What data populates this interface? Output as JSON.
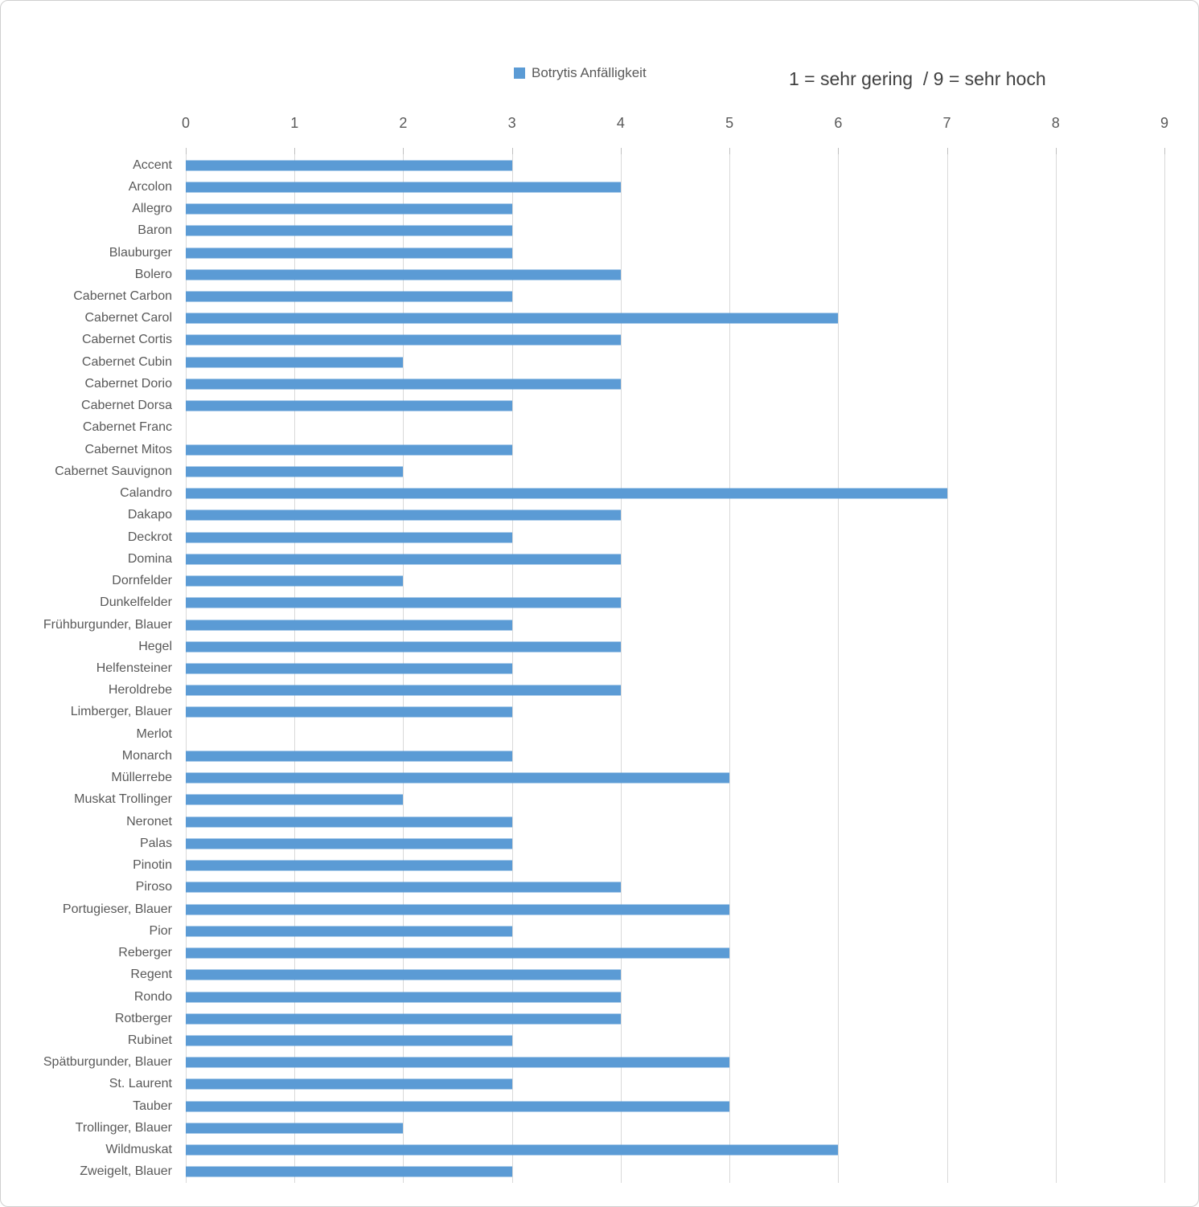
{
  "colors": {
    "bar": "#5B9BD5",
    "gridline": "#D9D9D9",
    "tick_mark": "#BFBFBF",
    "axis_text": "#595959",
    "note_text": "#404040"
  },
  "chart_data": {
    "type": "bar",
    "orientation": "horizontal",
    "series_name": "Botrytis Anfälligkeit",
    "note": "1 = sehr gering  / 9 = sehr hoch",
    "legend_position": "top",
    "grid": true,
    "xlim": [
      0,
      9
    ],
    "x_ticks": [
      0,
      1,
      2,
      3,
      4,
      5,
      6,
      7,
      8,
      9
    ],
    "categories": [
      "Accent",
      "Arcolon",
      "Allegro",
      "Baron",
      "Blauburger",
      "Bolero",
      "Cabernet Carbon",
      "Cabernet Carol",
      "Cabernet Cortis",
      "Cabernet Cubin",
      "Cabernet Dorio",
      "Cabernet Dorsa",
      "Cabernet Franc",
      "Cabernet Mitos",
      "Cabernet Sauvignon",
      "Calandro",
      "Dakapo",
      "Deckrot",
      "Domina",
      "Dornfelder",
      "Dunkelfelder",
      "Frühburgunder, Blauer",
      "Hegel",
      "Helfensteiner",
      "Heroldrebe",
      "Limberger, Blauer",
      "Merlot",
      "Monarch",
      "Müllerrebe",
      "Muskat Trollinger",
      "Neronet",
      "Palas",
      "Pinotin",
      "Piroso",
      "Portugieser, Blauer",
      "Pior",
      "Reberger",
      "Regent",
      "Rondo",
      "Rotberger",
      "Rubinet",
      "Spätburgunder, Blauer",
      "St. Laurent",
      "Tauber",
      "Trollinger, Blauer",
      "Wildmuskat",
      "Zweigelt, Blauer"
    ],
    "values": [
      3,
      4,
      3,
      3,
      3,
      4,
      3,
      6,
      4,
      2,
      4,
      3,
      0,
      3,
      2,
      7,
      4,
      3,
      4,
      2,
      4,
      3,
      4,
      3,
      4,
      3,
      0,
      3,
      5,
      2,
      3,
      3,
      3,
      4,
      5,
      3,
      5,
      4,
      4,
      4,
      3,
      5,
      3,
      5,
      2,
      6,
      3
    ]
  }
}
